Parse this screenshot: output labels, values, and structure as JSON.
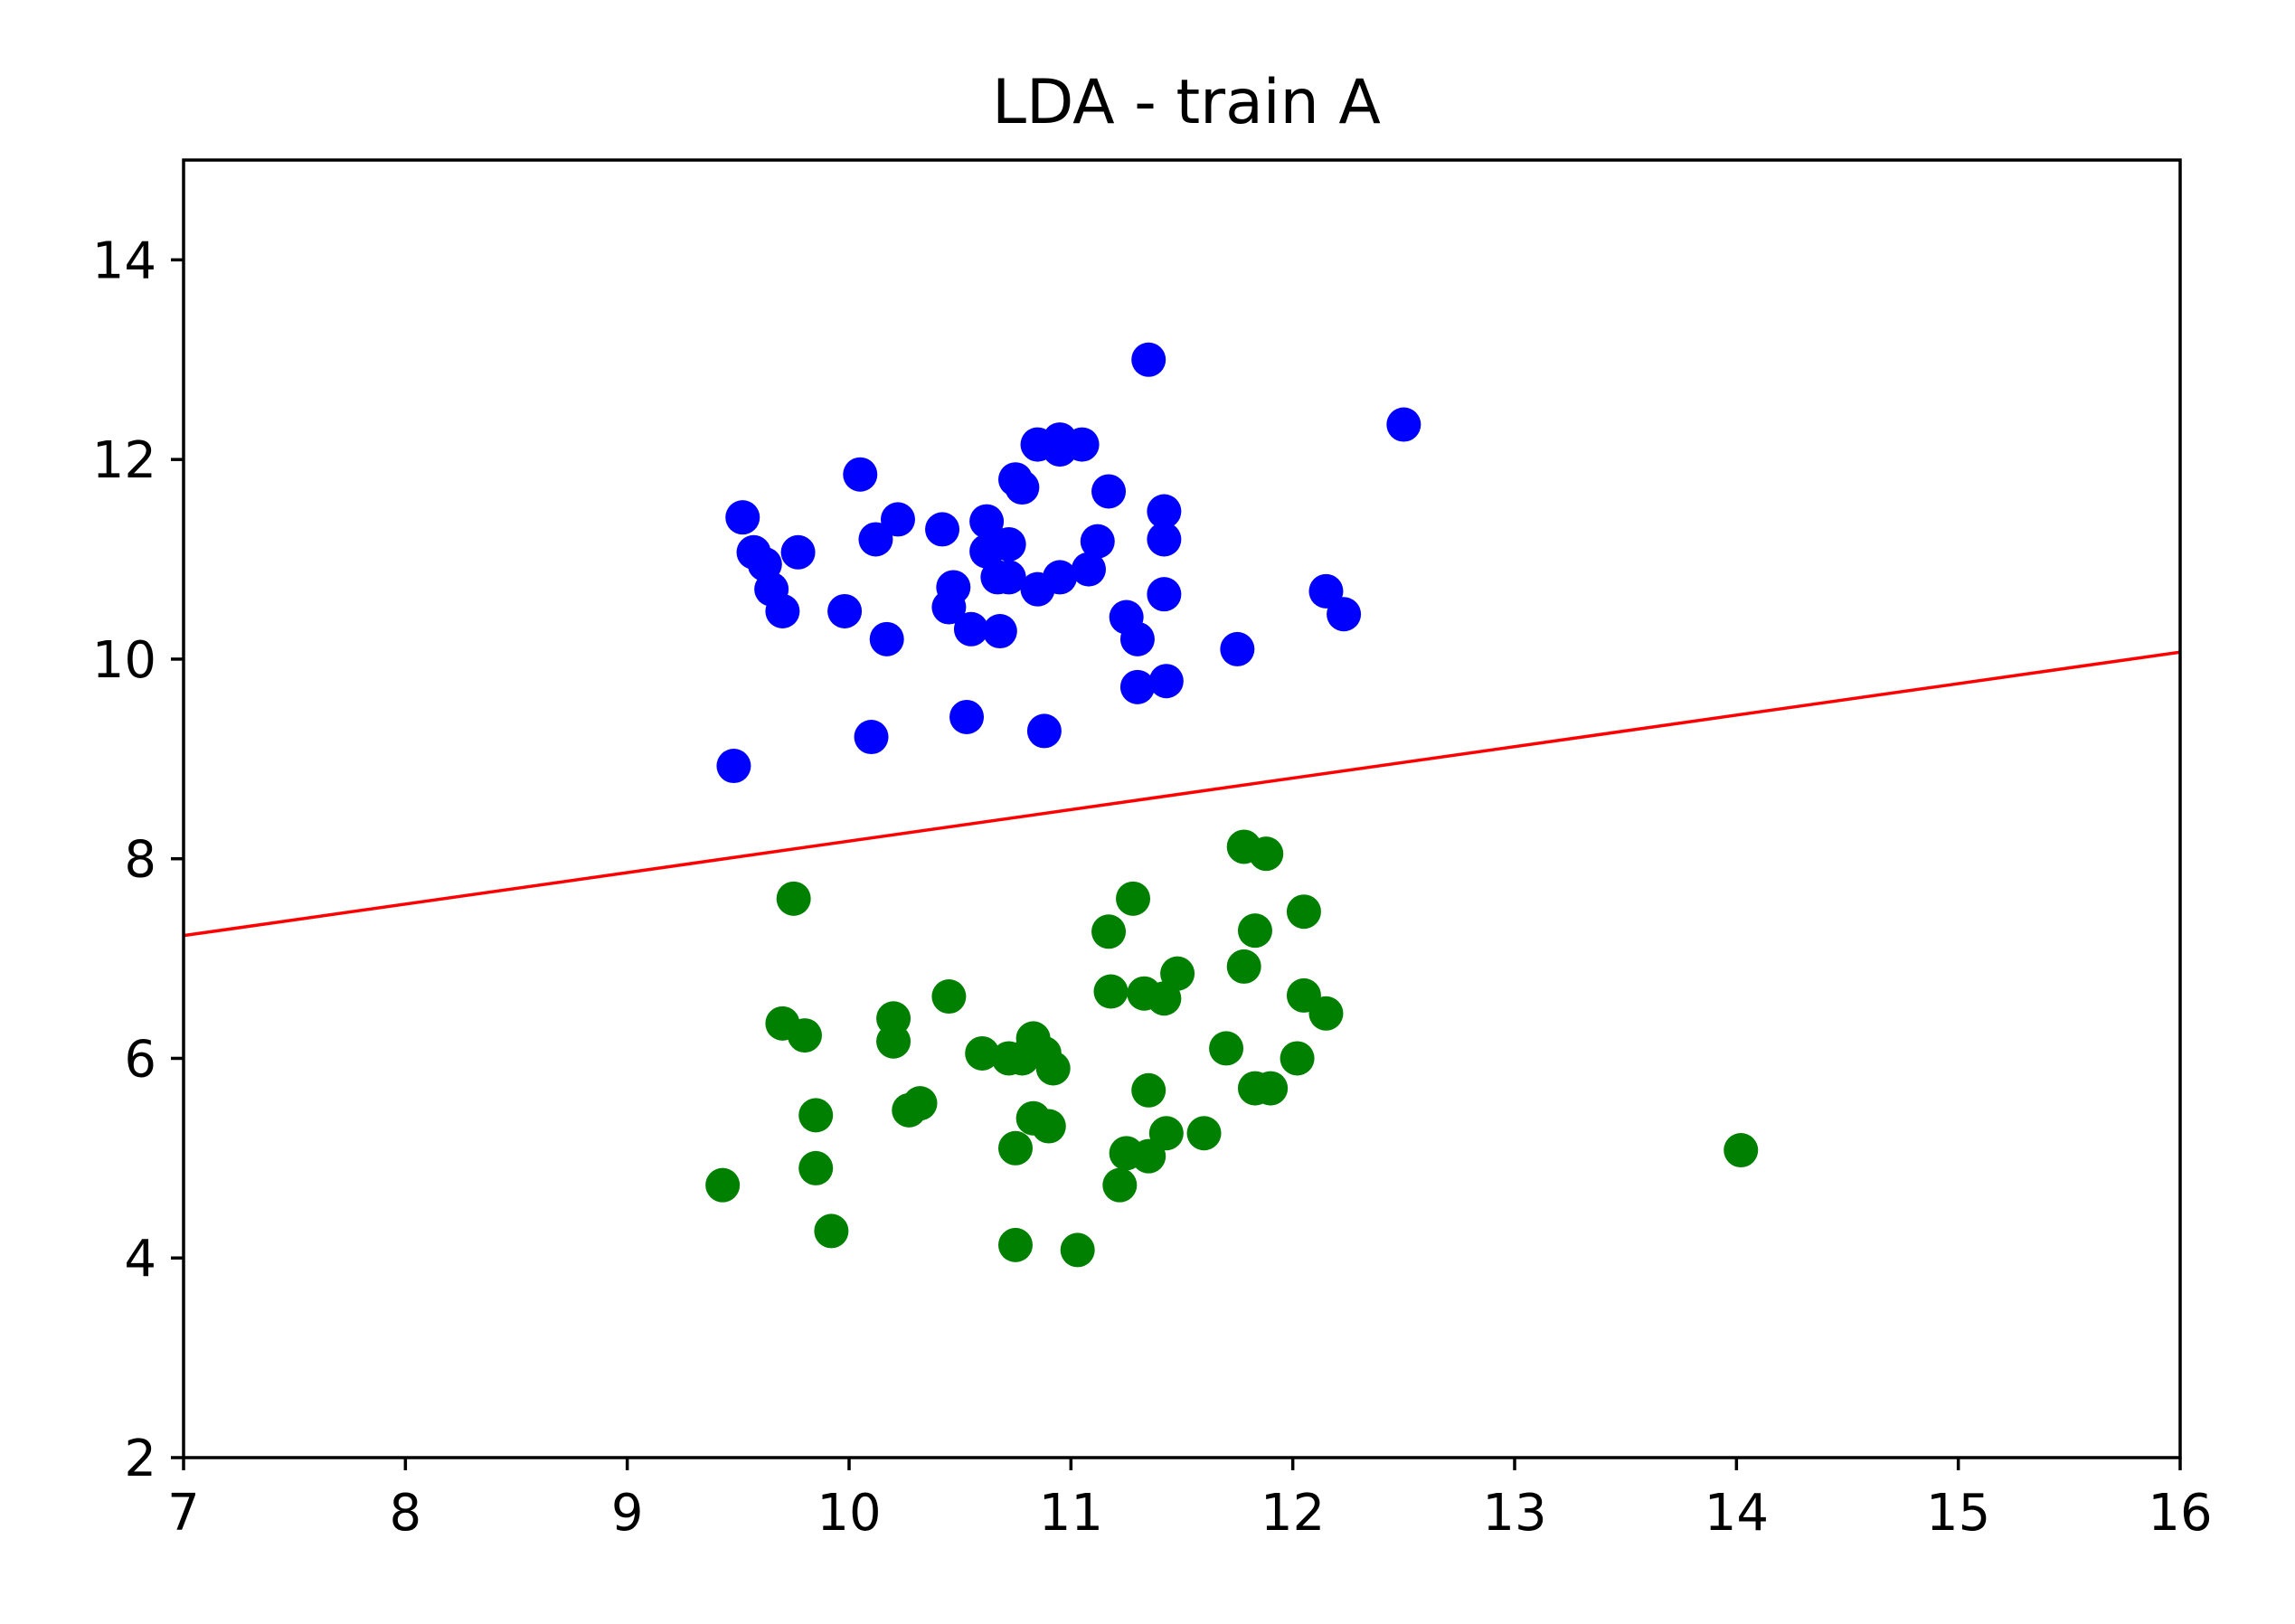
{
  "chart_data": {
    "type": "scatter",
    "title": "LDA - train A",
    "xlabel": "",
    "ylabel": "",
    "xlim": [
      7,
      16
    ],
    "ylim": [
      2,
      15
    ],
    "xticks": [
      7,
      8,
      9,
      10,
      11,
      12,
      13,
      14,
      15,
      16
    ],
    "yticks": [
      2,
      4,
      6,
      8,
      10,
      12,
      14
    ],
    "grid": false,
    "legend": "none",
    "series": [
      {
        "color": "#0000ff",
        "points": [
          [
            11.35,
            13.0
          ],
          [
            12.5,
            12.35
          ],
          [
            10.85,
            12.15
          ],
          [
            10.95,
            12.2
          ],
          [
            10.95,
            12.1
          ],
          [
            11.05,
            12.15
          ],
          [
            10.05,
            11.85
          ],
          [
            10.75,
            11.8
          ],
          [
            10.78,
            11.72
          ],
          [
            11.17,
            11.68
          ],
          [
            9.52,
            11.42
          ],
          [
            10.22,
            11.4
          ],
          [
            10.42,
            11.3
          ],
          [
            10.62,
            11.38
          ],
          [
            10.72,
            11.15
          ],
          [
            10.62,
            11.08
          ],
          [
            10.12,
            11.2
          ],
          [
            11.12,
            11.18
          ],
          [
            11.42,
            11.48
          ],
          [
            11.42,
            11.2
          ],
          [
            9.57,
            11.07
          ],
          [
            9.77,
            11.07
          ],
          [
            9.62,
            10.95
          ],
          [
            11.08,
            10.9
          ],
          [
            10.95,
            10.82
          ],
          [
            10.67,
            10.82
          ],
          [
            10.72,
            10.82
          ],
          [
            10.47,
            10.72
          ],
          [
            10.85,
            10.7
          ],
          [
            9.65,
            10.7
          ],
          [
            11.42,
            10.65
          ],
          [
            12.15,
            10.68
          ],
          [
            10.45,
            10.52
          ],
          [
            9.7,
            10.48
          ],
          [
            9.98,
            10.48
          ],
          [
            12.23,
            10.45
          ],
          [
            11.25,
            10.42
          ],
          [
            10.55,
            10.3
          ],
          [
            10.68,
            10.28
          ],
          [
            10.17,
            10.2
          ],
          [
            11.3,
            10.2
          ],
          [
            11.75,
            10.1
          ],
          [
            11.43,
            9.78
          ],
          [
            11.3,
            9.72
          ],
          [
            10.53,
            9.42
          ],
          [
            10.88,
            9.28
          ],
          [
            10.1,
            9.22
          ],
          [
            9.48,
            8.93
          ]
        ]
      },
      {
        "color": "#008000",
        "points": [
          [
            11.78,
            8.12
          ],
          [
            11.88,
            8.05
          ],
          [
            9.75,
            7.6
          ],
          [
            11.28,
            7.6
          ],
          [
            12.05,
            7.47
          ],
          [
            11.83,
            7.28
          ],
          [
            11.17,
            7.27
          ],
          [
            11.78,
            6.92
          ],
          [
            11.48,
            6.85
          ],
          [
            11.18,
            6.67
          ],
          [
            11.33,
            6.65
          ],
          [
            11.42,
            6.6
          ],
          [
            12.05,
            6.63
          ],
          [
            12.15,
            6.45
          ],
          [
            10.45,
            6.62
          ],
          [
            10.2,
            6.4
          ],
          [
            10.2,
            6.17
          ],
          [
            9.7,
            6.35
          ],
          [
            9.8,
            6.23
          ],
          [
            10.83,
            6.2
          ],
          [
            10.88,
            6.05
          ],
          [
            10.72,
            6.0
          ],
          [
            10.78,
            6.0
          ],
          [
            10.6,
            6.05
          ],
          [
            10.92,
            5.9
          ],
          [
            11.7,
            6.1
          ],
          [
            12.02,
            6.0
          ],
          [
            11.83,
            5.7
          ],
          [
            11.9,
            5.7
          ],
          [
            11.35,
            5.68
          ],
          [
            10.27,
            5.48
          ],
          [
            10.32,
            5.55
          ],
          [
            9.85,
            5.43
          ],
          [
            10.83,
            5.4
          ],
          [
            10.9,
            5.32
          ],
          [
            11.43,
            5.25
          ],
          [
            11.6,
            5.25
          ],
          [
            10.75,
            5.1
          ],
          [
            11.25,
            5.05
          ],
          [
            11.35,
            5.02
          ],
          [
            14.02,
            5.08
          ],
          [
            9.85,
            4.9
          ],
          [
            9.43,
            4.73
          ],
          [
            11.22,
            4.73
          ],
          [
            9.92,
            4.27
          ],
          [
            10.75,
            4.13
          ],
          [
            11.03,
            4.08
          ]
        ]
      }
    ],
    "lines": [
      {
        "color": "#ff0000",
        "x": [
          7,
          16
        ],
        "y": [
          7.23,
          10.07
        ]
      }
    ]
  }
}
